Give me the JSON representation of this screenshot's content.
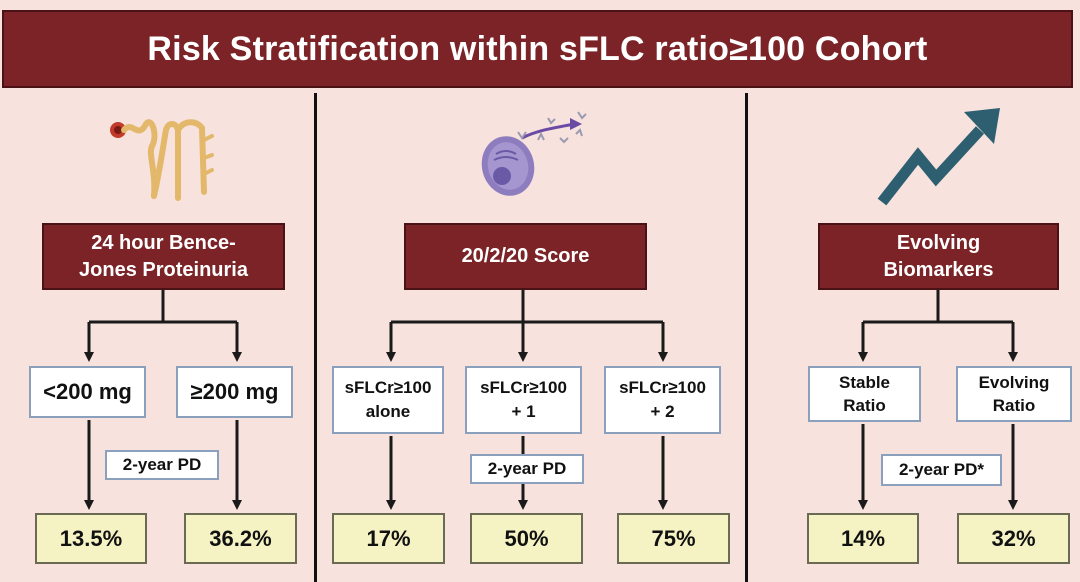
{
  "title": "Risk Stratification within sFLC ratio≥100 Cohort",
  "columns": [
    {
      "header": "24 hour Bence-\nJones Proteinuria",
      "icon": "kidney-nephron-icon",
      "groups": [
        "<200 mg",
        "≥200 mg"
      ],
      "pd_label": "2-year PD",
      "results": [
        "13.5%",
        "36.2%"
      ]
    },
    {
      "header": "20/2/20 Score",
      "icon": "plasma-cell-antibody-icon",
      "groups": [
        "sFLCr≥100\nalone",
        "sFLCr≥100\n+ 1",
        "sFLCr≥100\n+ 2"
      ],
      "pd_label": "2-year PD",
      "results": [
        "17%",
        "50%",
        "75%"
      ]
    },
    {
      "header": "Evolving\nBiomarkers",
      "icon": "rising-trend-arrow-icon",
      "groups": [
        "Stable\nRatio",
        "Evolving\nRatio"
      ],
      "pd_label": "2-year PD*",
      "results": [
        "14%",
        "32%"
      ]
    }
  ],
  "colors": {
    "header_fill": "#7b2326",
    "background": "#f7e2de",
    "result_fill": "#f5f2c4",
    "box_border": "#8aa0bd",
    "trend_arrow": "#2e5f70"
  }
}
